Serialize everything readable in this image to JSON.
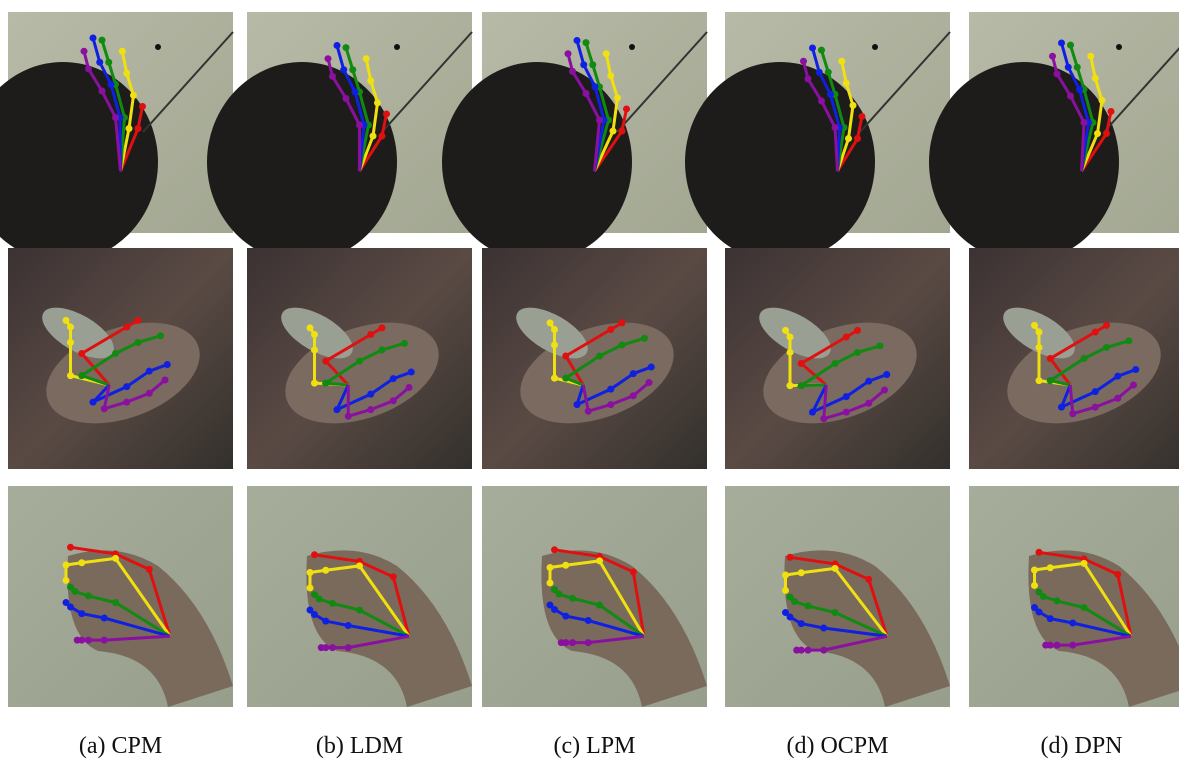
{
  "captions": [
    "(a) CPM",
    "(b) LDM",
    "(c) LPM",
    "(d) OCPM",
    "(d) DPN"
  ]
}
